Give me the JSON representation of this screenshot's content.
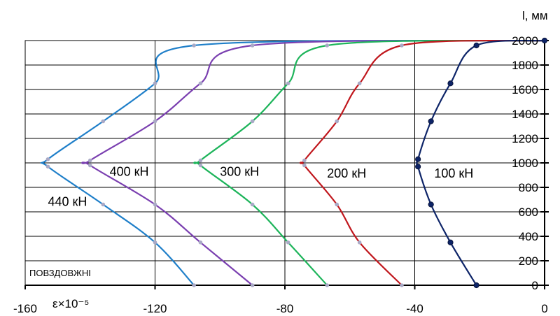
{
  "chart_data": {
    "type": "line",
    "xlabel": "ε×10⁻⁵",
    "ylabel": "l, мм",
    "note": "ПОВЗДОВЖНІ",
    "xlim": [
      -160,
      0
    ],
    "ylim": [
      0,
      2000
    ],
    "xticks": [
      -160,
      -120,
      -80,
      -40,
      0
    ],
    "yticks": [
      0,
      200,
      400,
      600,
      800,
      1000,
      1200,
      1400,
      1600,
      1800,
      2000
    ],
    "grid": true,
    "series": [
      {
        "name": "440 кН",
        "color": "#1f7fc9",
        "values": [
          [
            -108,
            0
          ],
          [
            -120,
            350
          ],
          [
            -136,
            660
          ],
          [
            -153,
            970
          ],
          [
            -153,
            1030
          ],
          [
            -136,
            1340
          ],
          [
            -120,
            1650
          ],
          [
            -108,
            1960
          ],
          [
            0,
            2000
          ]
        ],
        "label_at": [
          -153,
          650
        ]
      },
      {
        "name": "400 кН",
        "color": "#7a3fb0",
        "values": [
          [
            -90,
            0
          ],
          [
            -106,
            350
          ],
          [
            -120,
            660
          ],
          [
            -140,
            980
          ],
          [
            -140,
            1020
          ],
          [
            -120,
            1340
          ],
          [
            -106,
            1650
          ],
          [
            -90,
            1960
          ],
          [
            0,
            2000
          ]
        ],
        "label_at": [
          -134,
          895
        ]
      },
      {
        "name": "300 кН",
        "color": "#1db45a",
        "values": [
          [
            -67,
            0
          ],
          [
            -79,
            350
          ],
          [
            -90,
            660
          ],
          [
            -106,
            980
          ],
          [
            -106,
            1020
          ],
          [
            -90,
            1340
          ],
          [
            -79,
            1650
          ],
          [
            -67,
            1960
          ],
          [
            0,
            2000
          ]
        ],
        "label_at": [
          -100,
          895
        ]
      },
      {
        "name": "200 кН",
        "color": "#c0161c",
        "values": [
          [
            -44,
            0
          ],
          [
            -57,
            350
          ],
          [
            -64,
            660
          ],
          [
            -74,
            980
          ],
          [
            -74,
            1020
          ],
          [
            -64,
            1340
          ],
          [
            -57,
            1650
          ],
          [
            -44,
            1960
          ],
          [
            0,
            2000
          ]
        ],
        "label_at": [
          -67,
          880
        ]
      },
      {
        "name": "100 кН",
        "color": "#0d2468",
        "values": [
          [
            -21,
            0
          ],
          [
            -29,
            350
          ],
          [
            -35,
            660
          ],
          [
            -39,
            970
          ],
          [
            -39,
            1030
          ],
          [
            -35,
            1340
          ],
          [
            -29,
            1650
          ],
          [
            -21,
            1960
          ],
          [
            0,
            2000
          ]
        ],
        "label_at": [
          -34,
          880
        ]
      }
    ]
  }
}
